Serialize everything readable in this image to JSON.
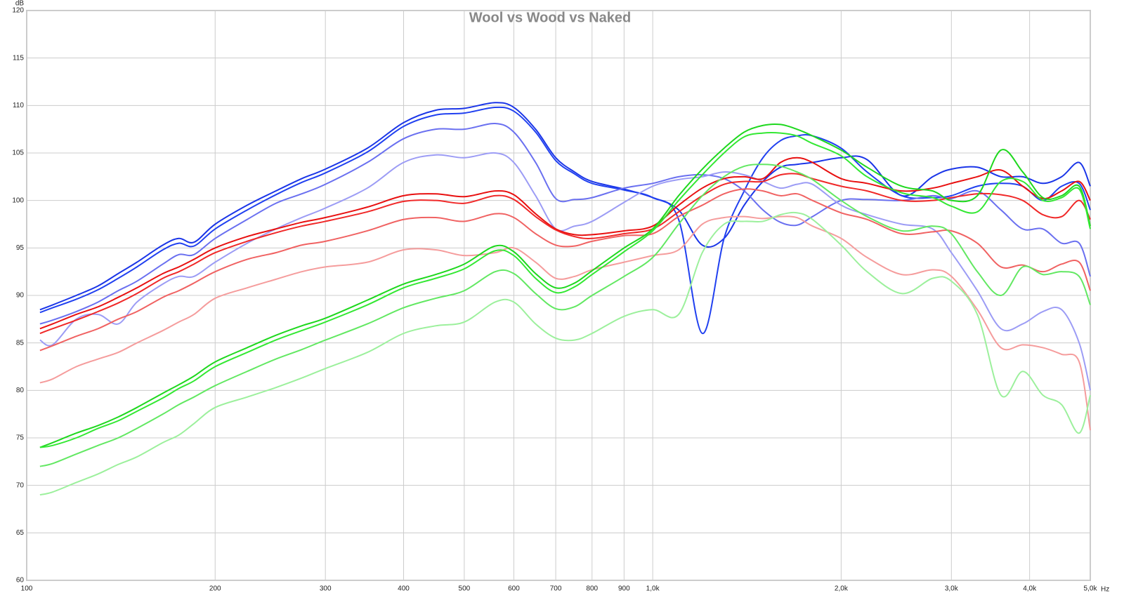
{
  "chart_data": {
    "type": "line",
    "title": "Wool vs Wood vs Naked",
    "y_unit": "dB",
    "x_unit": "Hz",
    "xscale": "log",
    "grid": true,
    "xlim": [
      100,
      5000
    ],
    "ylim": [
      60,
      120
    ],
    "yticks": [
      60,
      65,
      70,
      75,
      80,
      85,
      90,
      95,
      100,
      105,
      110,
      115,
      120
    ],
    "xticks": [
      100,
      200,
      300,
      400,
      500,
      600,
      700,
      800,
      900,
      {
        "value": 1000,
        "label": "1,0k"
      },
      {
        "value": 2000,
        "label": "2,0k"
      },
      {
        "value": 3000,
        "label": "3,0k"
      },
      {
        "value": 4000,
        "label": "4,0k"
      },
      {
        "value": 5000,
        "label": "5,0k"
      }
    ],
    "x": [
      105,
      110,
      120,
      130,
      140,
      150,
      165,
      175,
      185,
      200,
      225,
      250,
      275,
      300,
      350,
      400,
      450,
      500,
      560,
      600,
      650,
      700,
      750,
      800,
      900,
      1000,
      1100,
      1200,
      1300,
      1400,
      1500,
      1600,
      1700,
      1800,
      2000,
      2200,
      2500,
      2800,
      3000,
      3300,
      3600,
      3900,
      4200,
      4500,
      4800,
      5000
    ],
    "series": [
      {
        "color": "#1a35e8",
        "values": [
          88.5,
          89,
          90,
          91,
          92.3,
          93.5,
          95.3,
          96,
          95.6,
          97.5,
          99.5,
          101,
          102.3,
          103.3,
          105.5,
          108.2,
          109.5,
          109.7,
          110.3,
          109.8,
          107.5,
          104.5,
          103,
          102,
          101.2,
          100.3,
          99,
          95.3,
          96,
          99.5,
          102,
          103.5,
          103.8,
          104,
          104.5,
          104.3,
          100.5,
          102.5,
          103.3,
          103.5,
          102.5,
          102.5,
          101.8,
          102.5,
          104,
          101.5
        ]
      },
      {
        "color": "#2040f0",
        "values": [
          88.2,
          88.7,
          89.6,
          90.6,
          91.8,
          93,
          94.8,
          95.5,
          95.2,
          97,
          99,
          100.6,
          101.9,
          102.9,
          105.1,
          107.8,
          109,
          109.2,
          109.8,
          109.4,
          107.2,
          104.2,
          102.8,
          101.8,
          101.1,
          100.3,
          98,
          86,
          96,
          101,
          104.5,
          106.3,
          106.8,
          106.8,
          105.5,
          103,
          100.5,
          100.3,
          100.5,
          101.5,
          101.8,
          101.5,
          100,
          101.5,
          101.8,
          99
        ]
      },
      {
        "color": "#6a70f0",
        "values": [
          87,
          87.4,
          88.3,
          89.3,
          90.5,
          91.5,
          93.3,
          94.3,
          94.3,
          96,
          98,
          99.7,
          100.7,
          101.7,
          104,
          106.5,
          107.5,
          107.5,
          108.1,
          107.2,
          104,
          100.2,
          100.1,
          100.3,
          101.3,
          101.8,
          102.5,
          102.7,
          102.3,
          101,
          99,
          97.7,
          97.4,
          98.3,
          100,
          100.1,
          100,
          100.5,
          100.2,
          101,
          99,
          97,
          97,
          95.5,
          95.5,
          92
        ]
      },
      {
        "color": "#9c9cf5",
        "values": [
          85.3,
          84.8,
          87.5,
          88,
          87,
          89.3,
          91.2,
          92,
          92,
          93.5,
          95.5,
          97,
          98.2,
          99.2,
          101.3,
          104,
          104.8,
          104.5,
          105,
          104,
          100.5,
          97,
          97.3,
          97.8,
          99.8,
          101.5,
          102.2,
          102.5,
          103,
          102.7,
          102,
          101.3,
          101.7,
          101.7,
          99.5,
          98.5,
          97.5,
          97,
          94.5,
          90.5,
          86.5,
          87,
          88.3,
          88.5,
          85,
          80
        ]
      },
      {
        "color": "#e81010",
        "values": [
          86.5,
          87,
          88,
          88.8,
          89.8,
          90.8,
          92.3,
          93,
          93.8,
          95,
          96.2,
          97,
          97.7,
          98.2,
          99.3,
          100.5,
          100.7,
          100.4,
          101,
          100.6,
          98.6,
          97,
          96.4,
          96.4,
          96.8,
          97.3,
          99.5,
          101.3,
          102.3,
          102.5,
          102.3,
          104,
          104.5,
          104,
          102.3,
          101.8,
          101,
          101.3,
          101.8,
          102.5,
          103.2,
          101.5,
          100.2,
          101,
          102,
          100
        ]
      },
      {
        "color": "#f02828",
        "values": [
          86,
          86.5,
          87.4,
          88.3,
          89.2,
          90.2,
          91.8,
          92.5,
          93.3,
          94.5,
          95.7,
          96.6,
          97.3,
          97.8,
          98.8,
          99.9,
          100,
          99.7,
          100.5,
          100.1,
          98.3,
          96.9,
          96.2,
          96,
          96.5,
          97,
          98.8,
          100.5,
          101.7,
          102,
          102,
          102.7,
          102.8,
          102.3,
          101.5,
          101,
          100,
          100,
          100.3,
          100.7,
          100.6,
          100,
          98.5,
          98.3,
          100,
          98
        ]
      },
      {
        "color": "#f06262",
        "values": [
          84.2,
          84.7,
          85.7,
          86.5,
          87.5,
          88.3,
          89.8,
          90.5,
          91.3,
          92.5,
          93.8,
          94.5,
          95.3,
          95.7,
          96.8,
          98,
          98.2,
          97.8,
          98.6,
          98.2,
          96.5,
          95.3,
          95.2,
          95.7,
          96.3,
          96.5,
          98.3,
          99.5,
          100.7,
          101.2,
          101,
          100.5,
          100.7,
          100,
          98.7,
          98,
          96.5,
          96.7,
          96.8,
          95.5,
          93,
          93.2,
          92.5,
          93.3,
          93.5,
          90.5
        ]
      },
      {
        "color": "#f59c9c",
        "values": [
          80.8,
          81.2,
          82.5,
          83.3,
          84,
          85,
          86.3,
          87.2,
          88,
          89.7,
          90.8,
          91.7,
          92.5,
          93,
          93.5,
          94.8,
          94.8,
          94.2,
          94.5,
          95,
          93.5,
          91.8,
          92,
          92.7,
          93.5,
          94.2,
          94.8,
          97.5,
          98.2,
          98.3,
          98.1,
          98.3,
          98.2,
          97.3,
          96,
          94,
          92.2,
          92.7,
          92,
          88.5,
          84.5,
          84.8,
          84.5,
          83.8,
          83,
          75.8
        ]
      },
      {
        "color": "#1ed81e",
        "values": [
          74,
          74.5,
          75.5,
          76.3,
          77.2,
          78.2,
          79.7,
          80.6,
          81.5,
          83,
          84.5,
          85.8,
          86.8,
          87.6,
          89.5,
          91.2,
          92.2,
          93.3,
          95.2,
          94.6,
          92.3,
          90.8,
          91.3,
          92.6,
          95,
          97,
          100.5,
          103.3,
          105.5,
          107.2,
          107.9,
          108,
          107.5,
          106.8,
          105.3,
          103.5,
          101.5,
          101,
          100,
          100.5,
          105.3,
          103,
          100.3,
          100.5,
          101.5,
          97.3
        ]
      },
      {
        "color": "#33e833",
        "values": [
          74,
          74.2,
          75,
          76,
          76.8,
          77.8,
          79.2,
          80.2,
          81,
          82.5,
          84,
          85.3,
          86.3,
          87.2,
          89,
          90.8,
          91.8,
          92.8,
          94.7,
          94.2,
          91.8,
          90.3,
          90.9,
          92.2,
          94.6,
          96.8,
          100,
          102.7,
          105,
          106.7,
          107.1,
          107.1,
          106.8,
          106,
          104.7,
          102.5,
          100.8,
          100.3,
          99.4,
          98.8,
          102,
          102,
          100,
          100.3,
          101.2,
          97
        ]
      },
      {
        "color": "#62e862",
        "values": [
          72,
          72.3,
          73.3,
          74.2,
          75,
          76,
          77.5,
          78.5,
          79.3,
          80.5,
          82,
          83.3,
          84.3,
          85.3,
          87,
          88.7,
          89.7,
          90.5,
          92.5,
          92.3,
          90.2,
          88.6,
          88.8,
          90,
          92,
          94,
          97.5,
          100.5,
          102.5,
          103.6,
          103.8,
          103.6,
          103,
          102.2,
          100,
          98.3,
          96.8,
          97.3,
          96.5,
          92.5,
          90,
          93,
          92.2,
          92.5,
          92,
          89
        ]
      },
      {
        "color": "#9cf09c",
        "values": [
          69,
          69.3,
          70.3,
          71.2,
          72.2,
          73,
          74.5,
          75.3,
          76.5,
          78.2,
          79.3,
          80.3,
          81.3,
          82.3,
          84,
          86,
          86.8,
          87.2,
          89.3,
          89.3,
          87,
          85.5,
          85.3,
          86,
          87.8,
          88.5,
          88,
          94.5,
          97.5,
          97.8,
          97.8,
          98.5,
          98.7,
          98,
          95.3,
          92.5,
          90.2,
          91.8,
          91.5,
          88,
          79.5,
          82,
          79.5,
          78.5,
          75.5,
          79.5
        ]
      }
    ]
  }
}
